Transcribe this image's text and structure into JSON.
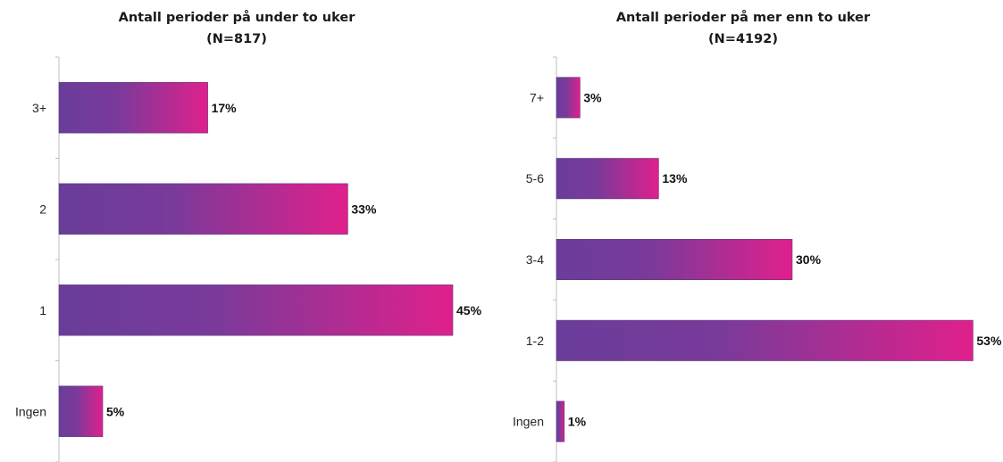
{
  "chart_data": [
    {
      "type": "bar",
      "orientation": "horizontal",
      "title": "Antall perioder på under to uker",
      "subtitle": "(N=817)",
      "categories": [
        "Ingen",
        "1",
        "2",
        "3+"
      ],
      "values": [
        5,
        45,
        33,
        17
      ],
      "value_labels": [
        "5%",
        "45%",
        "33%",
        "17%"
      ],
      "unit": "%",
      "grid": false,
      "legend": "none"
    },
    {
      "type": "bar",
      "orientation": "horizontal",
      "title": "Antall perioder på mer enn to uker",
      "subtitle": "(N=4192)",
      "categories": [
        "Ingen",
        "1-2",
        "3-4",
        "5-6",
        "7+"
      ],
      "values": [
        1,
        53,
        30,
        13,
        3
      ],
      "value_labels": [
        "1%",
        "53%",
        "30%",
        "13%",
        "3%"
      ],
      "unit": "%",
      "grid": false,
      "legend": "none"
    }
  ],
  "colors": {
    "bar_gradient_start": "#6a3d9a",
    "bar_gradient_end": "#e0208c"
  }
}
